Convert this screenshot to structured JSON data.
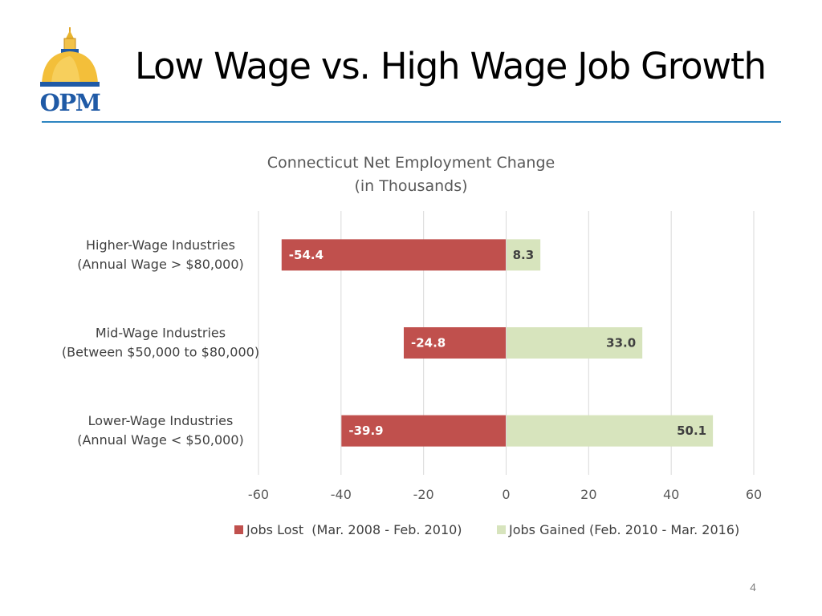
{
  "logo": {
    "text": "OPM"
  },
  "slide": {
    "title": "Low Wage vs. High Wage Job Growth",
    "page_number": "4"
  },
  "colors": {
    "jobs_lost": "#c0504d",
    "jobs_gained": "#d7e4bd",
    "title_rule": "#2e86c1"
  },
  "chart_data": {
    "type": "bar",
    "orientation": "horizontal",
    "stacked": true,
    "title": [
      "Connecticut Net Employment Change",
      "(in Thousands)"
    ],
    "categories": [
      [
        "Higher-Wage Industries",
        "(Annual Wage > $80,000)"
      ],
      [
        "Mid-Wage Industries",
        "(Between $50,000 to $80,000)"
      ],
      [
        "Lower-Wage Industries",
        "(Annual Wage < $50,000)"
      ]
    ],
    "series": [
      {
        "name": "Jobs Lost  (Mar. 2008 - Feb. 2010)",
        "values": [
          -54.4,
          -24.8,
          -39.9
        ],
        "labels": [
          "-54.4",
          "-24.8",
          "-39.9"
        ]
      },
      {
        "name": "Jobs Gained (Feb. 2010 - Mar. 2016)",
        "values": [
          8.3,
          33.0,
          50.1
        ],
        "labels": [
          "8.3",
          "33.0",
          "50.1"
        ]
      }
    ],
    "xlim": [
      -60,
      60
    ],
    "xticks": [
      -60,
      -40,
      -20,
      0,
      20,
      40,
      60
    ],
    "xtick_labels": [
      "-60",
      "-40",
      "-20",
      "0",
      "20",
      "40",
      "60"
    ],
    "grid": "vertical",
    "legend": "bottom"
  }
}
